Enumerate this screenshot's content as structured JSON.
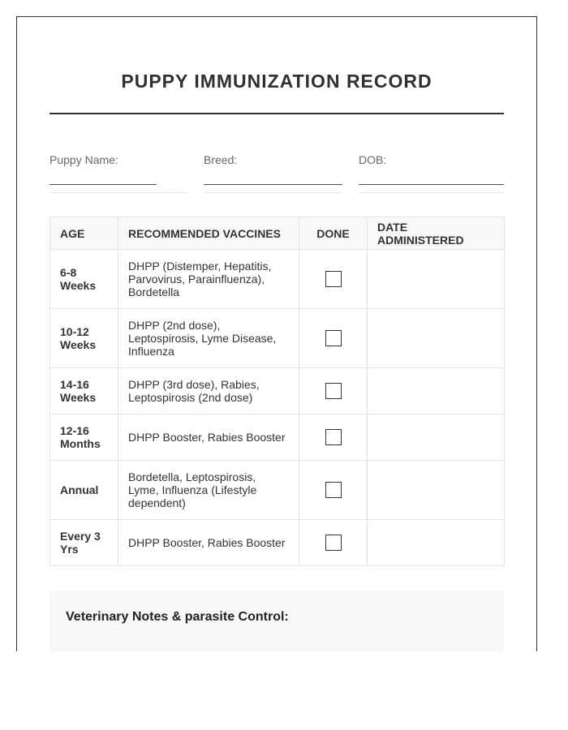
{
  "title": "PUPPY IMMUNIZATION RECORD",
  "fields": [
    {
      "label": "Puppy Name:",
      "value": ""
    },
    {
      "label": "Breed:",
      "value": ""
    },
    {
      "label": "DOB:",
      "value": ""
    }
  ],
  "table": {
    "headers": [
      "AGE",
      "RECOMMENDED VACCINES",
      "DONE",
      "DATE ADMINISTERED"
    ],
    "rows": [
      {
        "age": "6-8 Weeks",
        "vaccines": "DHPP (Distemper, Hepatitis, Parvovirus, Parainfluenza), Bordetella",
        "done": false,
        "date": ""
      },
      {
        "age": "10-12 Weeks",
        "vaccines": "DHPP (2nd dose), Leptospirosis, Lyme Disease, Influenza",
        "done": false,
        "date": ""
      },
      {
        "age": "14-16 Weeks",
        "vaccines": "DHPP (3rd dose), Rabies, Leptospirosis (2nd dose)",
        "done": false,
        "date": ""
      },
      {
        "age": "12-16 Months",
        "vaccines": "DHPP Booster, Rabies Booster",
        "done": false,
        "date": ""
      },
      {
        "age": "Annual",
        "vaccines": "Bordetella, Leptospirosis, Lyme, Influenza (Lifestyle dependent)",
        "done": false,
        "date": ""
      },
      {
        "age": "Every 3 Yrs",
        "vaccines": "DHPP Booster, Rabies Booster",
        "done": false,
        "date": ""
      }
    ]
  },
  "notes": {
    "heading": "Veterinary Notes & parasite Control:"
  }
}
